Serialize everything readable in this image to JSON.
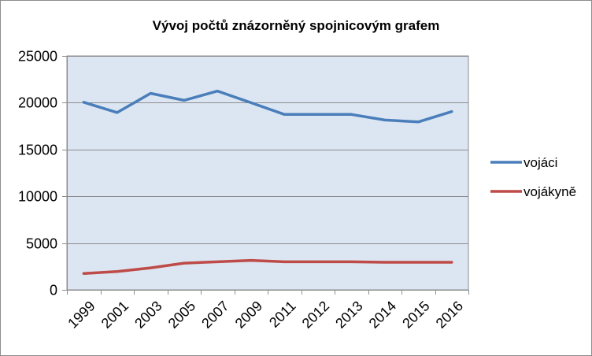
{
  "chart_data": {
    "type": "line",
    "title": "Vývoj počtů znázorněný spojnicovým grafem",
    "xlabel": "",
    "ylabel": "",
    "categories": [
      "1999",
      "2001",
      "2003",
      "2005",
      "2007",
      "2009",
      "2011",
      "2012",
      "2013",
      "2014",
      "2015",
      "2016"
    ],
    "ylim": [
      0,
      25000
    ],
    "yticks": [
      "0",
      "5000",
      "10000",
      "15000",
      "20000",
      "25000"
    ],
    "grid": true,
    "legend_position": "right",
    "series": [
      {
        "name": "vojáci",
        "color": "#4a7ebb",
        "values": [
          20050,
          18950,
          21000,
          20250,
          21250,
          20000,
          18750,
          18750,
          18750,
          18150,
          17950,
          19050
        ]
      },
      {
        "name": "vojákyně",
        "color": "#be4b48",
        "values": [
          1750,
          1950,
          2350,
          2850,
          3000,
          3150,
          3000,
          3000,
          3000,
          2950,
          2950,
          2950
        ]
      }
    ],
    "plot_background": "#dce6f2"
  }
}
